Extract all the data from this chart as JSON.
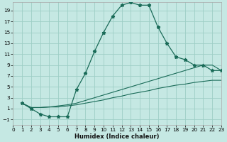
{
  "xlabel": "Humidex (Indice chaleur)",
  "background_color": "#c5e8e3",
  "grid_color": "#9ecec6",
  "line_color": "#1a6b58",
  "xlim": [
    0,
    23
  ],
  "ylim": [
    -2,
    20.5
  ],
  "xticks": [
    0,
    1,
    2,
    3,
    4,
    5,
    6,
    7,
    8,
    9,
    10,
    11,
    12,
    13,
    14,
    15,
    16,
    17,
    18,
    19,
    20,
    21,
    22,
    23
  ],
  "yticks": [
    -1,
    1,
    3,
    5,
    7,
    9,
    11,
    13,
    15,
    17,
    19
  ],
  "main_x": [
    1,
    2,
    3,
    4,
    5,
    6,
    7,
    8,
    9,
    10,
    11,
    12,
    13,
    14,
    15,
    16,
    17,
    18,
    19,
    20,
    21,
    22,
    23
  ],
  "main_y": [
    2,
    1,
    0,
    -0.5,
    -0.5,
    -0.5,
    4.5,
    7.5,
    11.5,
    15,
    18,
    20,
    20.5,
    20,
    20,
    16,
    13,
    10.5,
    10,
    9,
    9,
    8,
    8
  ],
  "upper_x": [
    1,
    2,
    3,
    4,
    5,
    6,
    7,
    8,
    9,
    10,
    11,
    12,
    13,
    14,
    15,
    16,
    17,
    18,
    19,
    20,
    21,
    22,
    23
  ],
  "upper_y": [
    2,
    1.2,
    1.2,
    1.3,
    1.5,
    1.7,
    2.0,
    2.5,
    3.0,
    3.5,
    4.0,
    4.5,
    5.0,
    5.5,
    6.0,
    6.5,
    7.0,
    7.5,
    8.0,
    8.5,
    9.0,
    9.0,
    8.0
  ],
  "lower_x": [
    1,
    2,
    3,
    4,
    5,
    6,
    7,
    8,
    9,
    10,
    11,
    12,
    13,
    14,
    15,
    16,
    17,
    18,
    19,
    20,
    21,
    22,
    23
  ],
  "lower_y": [
    2,
    1.2,
    1.2,
    1.3,
    1.3,
    1.5,
    1.7,
    2.0,
    2.3,
    2.6,
    3.0,
    3.3,
    3.7,
    4.0,
    4.3,
    4.7,
    5.0,
    5.3,
    5.5,
    5.8,
    6.0,
    6.2,
    6.2
  ]
}
